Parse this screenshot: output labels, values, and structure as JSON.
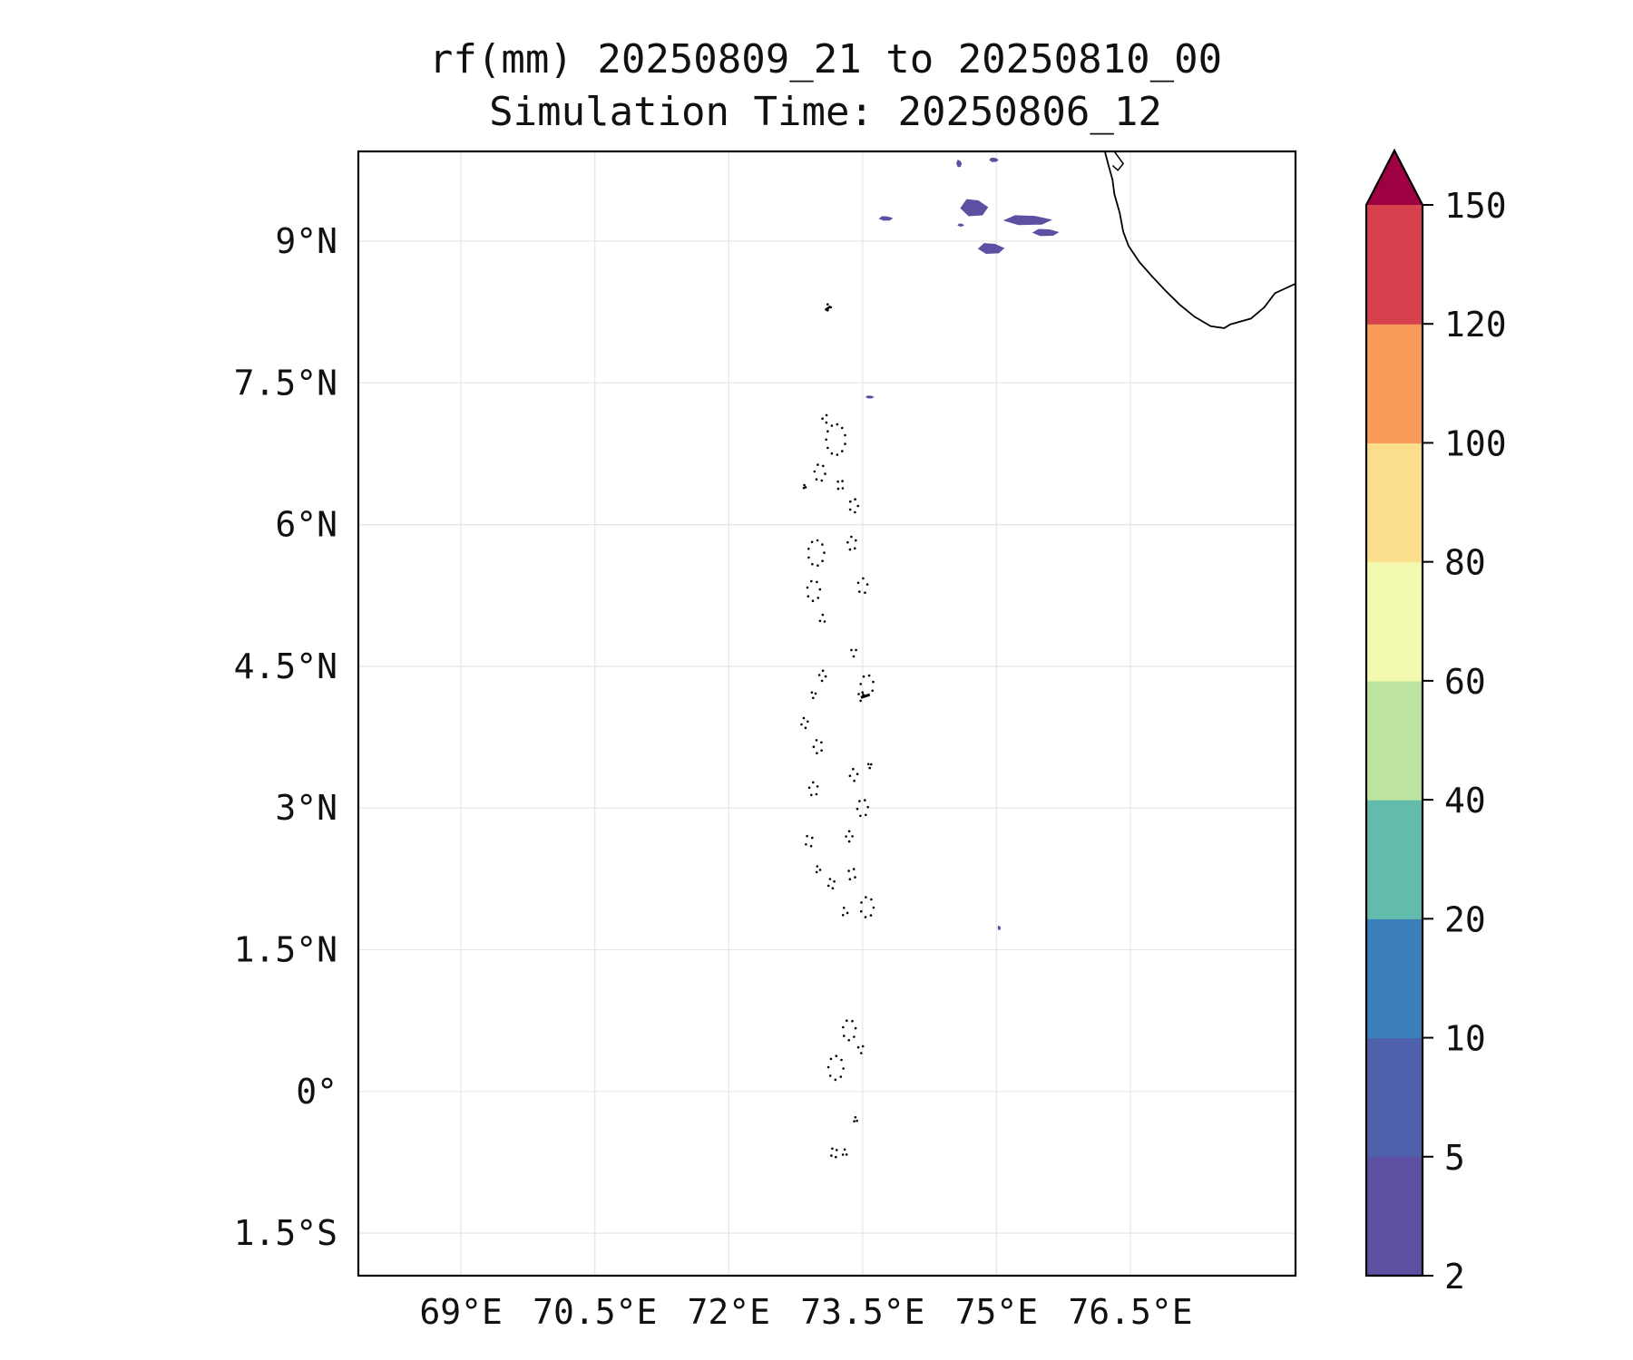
{
  "title": {
    "line1": "rf(mm) 20250809_21 to 20250810_00",
    "line2": "Simulation Time: 20250806_12"
  },
  "map": {
    "type": "contourf",
    "xlim": [
      67.85,
      78.35
    ],
    "ylim": [
      -1.95,
      9.95
    ],
    "xticks": [
      {
        "value": 69,
        "label": "69°E"
      },
      {
        "value": 70.5,
        "label": "70.5°E"
      },
      {
        "value": 72,
        "label": "72°E"
      },
      {
        "value": 73.5,
        "label": "73.5°E"
      },
      {
        "value": 75,
        "label": "75°E"
      },
      {
        "value": 76.5,
        "label": "76.5°E"
      }
    ],
    "yticks": [
      {
        "value": 9,
        "label": "9°N"
      },
      {
        "value": 7.5,
        "label": "7.5°N"
      },
      {
        "value": 6,
        "label": "6°N"
      },
      {
        "value": 4.5,
        "label": "4.5°N"
      },
      {
        "value": 3,
        "label": "3°N"
      },
      {
        "value": 1.5,
        "label": "1.5°N"
      },
      {
        "value": 0,
        "label": "0°"
      },
      {
        "value": -1.5,
        "label": "1.5°S"
      }
    ],
    "grid": true,
    "gridline_color": "#e6e6e6",
    "coastline_color": "#000000",
    "rain_color_2_5": "#5e4fa2"
  },
  "colorbar": {
    "levels": [
      "2",
      "5",
      "10",
      "20",
      "40",
      "60",
      "80",
      "100",
      "120",
      "150"
    ],
    "colors": [
      "#5e4fa2",
      "#4f61aa",
      "#3a7fb9",
      "#63bcab",
      "#bce4a0",
      "#f3faaf",
      "#fbdf8c",
      "#f89a58",
      "#d7414e",
      "#9e0142"
    ],
    "extend": "max"
  },
  "chart_data": {
    "type": "heatmap",
    "title": "rf(mm) 20250809_21 to 20250810_00",
    "subtitle": "Simulation Time: 20250806_12",
    "xlabel": "",
    "ylabel": "",
    "xlim": [
      67.85,
      78.35
    ],
    "ylim": [
      -1.95,
      9.95
    ],
    "legend": "colorbar right",
    "series": [
      {
        "values_note_level": "2-5",
        "patches": [
          [
            74.75,
            9.35,
            0.15,
            0.09
          ],
          [
            75.35,
            9.22,
            0.26,
            0.05
          ],
          [
            75.55,
            9.09,
            0.14,
            0.035
          ],
          [
            74.94,
            8.92,
            0.14,
            0.055
          ],
          [
            73.76,
            9.24,
            0.07,
            0.02
          ],
          [
            74.6,
            9.17,
            0.03,
            0.012
          ],
          [
            74.58,
            9.82,
            0.025,
            0.035
          ],
          [
            74.97,
            9.86,
            0.045,
            0.02
          ],
          [
            73.58,
            7.35,
            0.04,
            0.012
          ],
          [
            75.03,
            1.73,
            0.012,
            0.02
          ]
        ]
      }
    ]
  }
}
